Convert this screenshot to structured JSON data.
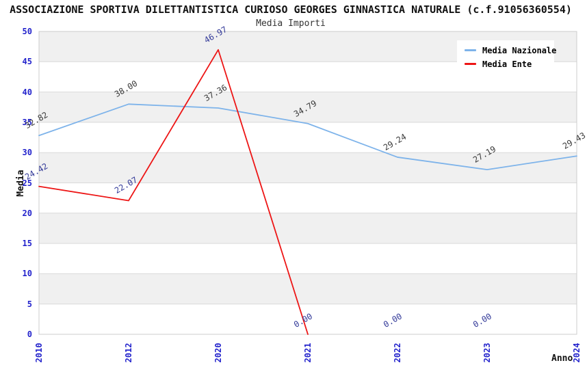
{
  "header": {
    "title": "ASSOCIAZIONE SPORTIVA DILETTANTISTICA CURIOSO GEORGES GINNASTICA NATURALE (c.f.91056360554)",
    "subtitle": "Media Importi"
  },
  "axes": {
    "x_label": "Anno",
    "y_label": "Media"
  },
  "chart_data": {
    "type": "line",
    "title": "ASSOCIAZIONE SPORTIVA DILETTANTISTICA CURIOSO GEORGES GINNASTICA NATURALE (c.f.91056360554)",
    "subtitle": "Media Importi",
    "xlabel": "Anno",
    "ylabel": "Media",
    "categories": [
      "2010",
      "2012",
      "2020",
      "2021",
      "2022",
      "2023",
      "2024"
    ],
    "series": [
      {
        "name": "Media Nazionale",
        "color": "#7db3ea",
        "label_color": "#3a3a3a",
        "values": [
          32.82,
          38.0,
          37.36,
          34.79,
          29.24,
          27.19,
          29.43
        ]
      },
      {
        "name": "Media Ente",
        "color": "#ed1515",
        "label_color": "#333a99",
        "values": [
          24.42,
          22.07,
          46.97,
          0.0,
          0.0,
          0.0,
          null
        ]
      }
    ],
    "ylim": [
      0,
      50
    ],
    "y_tick_step": 5,
    "y_ticks": [
      0,
      5,
      10,
      15,
      20,
      25,
      30,
      35,
      40,
      45,
      50
    ],
    "grid": "horizontal gridlines with alternating shaded bands",
    "legend_position": "top-right",
    "x_tick_rotation": -90,
    "data_label_rotation": -30,
    "data_label_format": "0.00"
  },
  "style": {
    "band_fill": "#f0f0f0",
    "gridline": "#d9d9d9",
    "plot_border": "#cccccc",
    "tick_text": "#2323cc",
    "title_text": "#111111"
  }
}
